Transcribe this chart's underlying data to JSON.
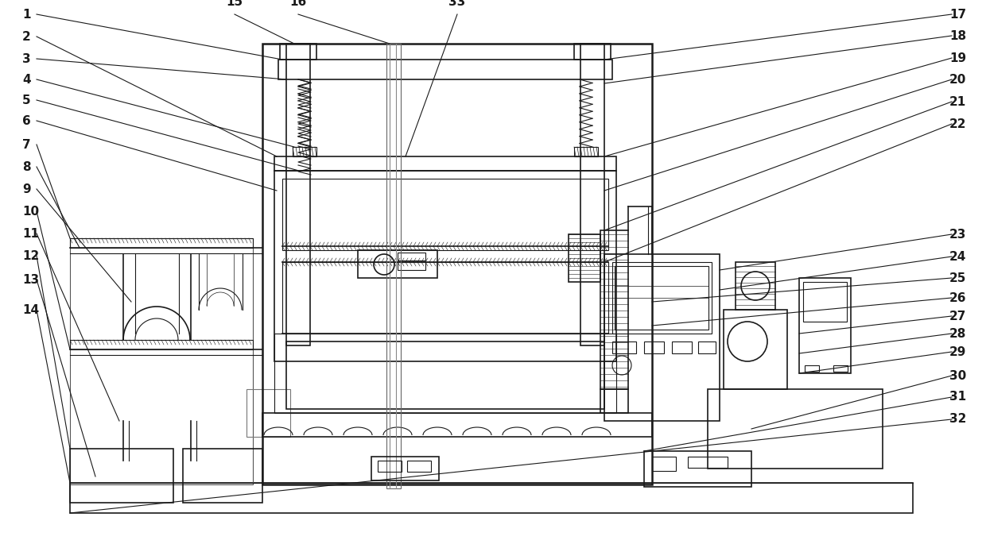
{
  "bg_color": "#ffffff",
  "line_color": "#1a1a1a",
  "fig_width": 12.4,
  "fig_height": 6.85,
  "label_fontsize": 11,
  "label_fontweight": "bold"
}
